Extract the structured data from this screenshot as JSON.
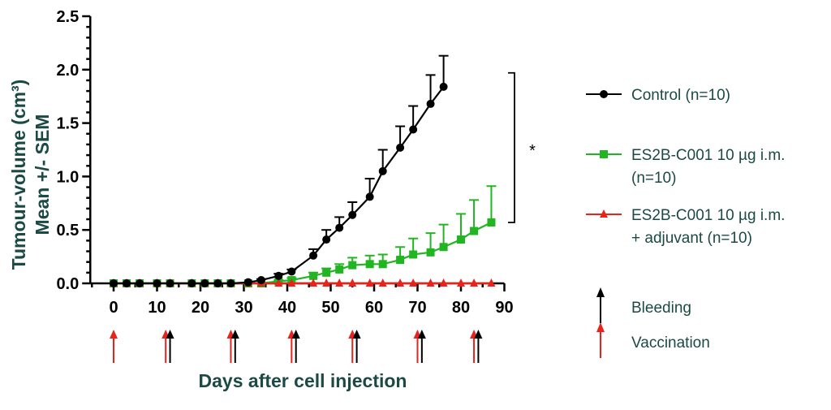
{
  "chart_data": {
    "type": "line",
    "xlabel": "Days after cell injection",
    "ylabel_line1": "Tumour-volume (cm³)",
    "ylabel_line2": "Mean +/- SEM",
    "xlim": [
      -5,
      90
    ],
    "ylim": [
      0,
      2.5
    ],
    "x_ticks": [
      "0",
      "10",
      "20",
      "30",
      "40",
      "50",
      "60",
      "70",
      "80",
      "90"
    ],
    "y_ticks": [
      "0.0",
      "0.5",
      "1.0",
      "1.5",
      "2.0",
      "2.5"
    ],
    "series": [
      {
        "name": "Control (n=10)",
        "color": "#000000",
        "marker": "circle",
        "x": [
          0,
          3,
          6,
          10,
          13,
          18,
          21,
          24,
          27,
          31,
          34,
          38,
          41,
          46,
          49,
          52,
          55,
          59,
          62,
          66,
          69,
          73,
          76
        ],
        "y": [
          0,
          0,
          0,
          0,
          0,
          0,
          0,
          0,
          0,
          0.01,
          0.03,
          0.07,
          0.11,
          0.26,
          0.41,
          0.52,
          0.64,
          0.81,
          1.05,
          1.27,
          1.44,
          1.68,
          1.84
        ],
        "err": [
          0,
          0,
          0,
          0,
          0,
          0,
          0,
          0,
          0,
          0,
          0.01,
          0.02,
          0.02,
          0.06,
          0.09,
          0.1,
          0.12,
          0.17,
          0.2,
          0.2,
          0.22,
          0.27,
          0.29
        ]
      },
      {
        "name": "ES2B-C001 10 µg i.m. (n=10)",
        "color": "#22b522",
        "marker": "square",
        "x": [
          0,
          3,
          6,
          10,
          13,
          18,
          21,
          24,
          27,
          31,
          34,
          38,
          41,
          46,
          49,
          52,
          55,
          59,
          62,
          66,
          69,
          73,
          76,
          80,
          83,
          87
        ],
        "y": [
          0,
          0,
          0,
          0,
          0,
          0,
          0,
          0,
          0,
          0,
          0,
          0.02,
          0.03,
          0.07,
          0.1,
          0.13,
          0.17,
          0.18,
          0.18,
          0.22,
          0.27,
          0.29,
          0.34,
          0.41,
          0.49,
          0.57
        ],
        "err": [
          0,
          0,
          0,
          0,
          0,
          0,
          0,
          0,
          0,
          0,
          0,
          0.01,
          0.02,
          0.03,
          0.04,
          0.05,
          0.07,
          0.08,
          0.09,
          0.12,
          0.15,
          0.18,
          0.21,
          0.24,
          0.29,
          0.34
        ]
      },
      {
        "name": "ES2B-C001 10 µg i.m. + adjuvant (n=10)",
        "color": "#e8231c",
        "marker": "triangle",
        "x": [
          0,
          3,
          6,
          10,
          13,
          18,
          21,
          24,
          27,
          31,
          34,
          38,
          41,
          46,
          49,
          52,
          55,
          59,
          62,
          66,
          69,
          73,
          76,
          80,
          83,
          87
        ],
        "y": [
          0,
          0,
          0,
          0,
          0,
          0,
          0,
          0,
          0,
          0,
          0,
          0,
          0,
          0,
          0,
          0,
          0,
          0,
          0,
          0,
          0,
          0,
          0,
          0,
          0,
          0
        ],
        "err": [
          0,
          0,
          0,
          0,
          0,
          0,
          0,
          0,
          0,
          0,
          0,
          0,
          0,
          0,
          0,
          0,
          0,
          0,
          0,
          0,
          0,
          0,
          0,
          0,
          0,
          0
        ]
      }
    ],
    "bleeding_days": [
      13,
      28,
      42,
      56,
      71,
      84
    ],
    "vaccination_days": [
      0,
      12,
      27,
      41,
      55,
      70,
      83
    ],
    "significance": {
      "label": "*",
      "between": [
        "Control (n=10)",
        "ES2B-C001 10 µg i.m. (n=10)"
      ],
      "y_top": 1.97,
      "y_bottom": 0.57
    },
    "legend": {
      "position": "right",
      "entries": [
        {
          "lines": [
            "Control (n=10)"
          ],
          "color": "#000000",
          "marker": "circle"
        },
        {
          "lines": [
            "ES2B-C001 10 µg i.m.",
            "(n=10)"
          ],
          "color": "#22b522",
          "marker": "square"
        },
        {
          "lines": [
            "ES2B-C001 10 µg i.m.",
            "+ adjuvant (n=10)"
          ],
          "color": "#e8231c",
          "marker": "triangle"
        },
        {
          "lines": [
            "Bleeding"
          ],
          "color": "#000000",
          "marker": "arrow"
        },
        {
          "lines": [
            "Vaccination"
          ],
          "color": "#e8231c",
          "marker": "arrow"
        }
      ]
    }
  }
}
